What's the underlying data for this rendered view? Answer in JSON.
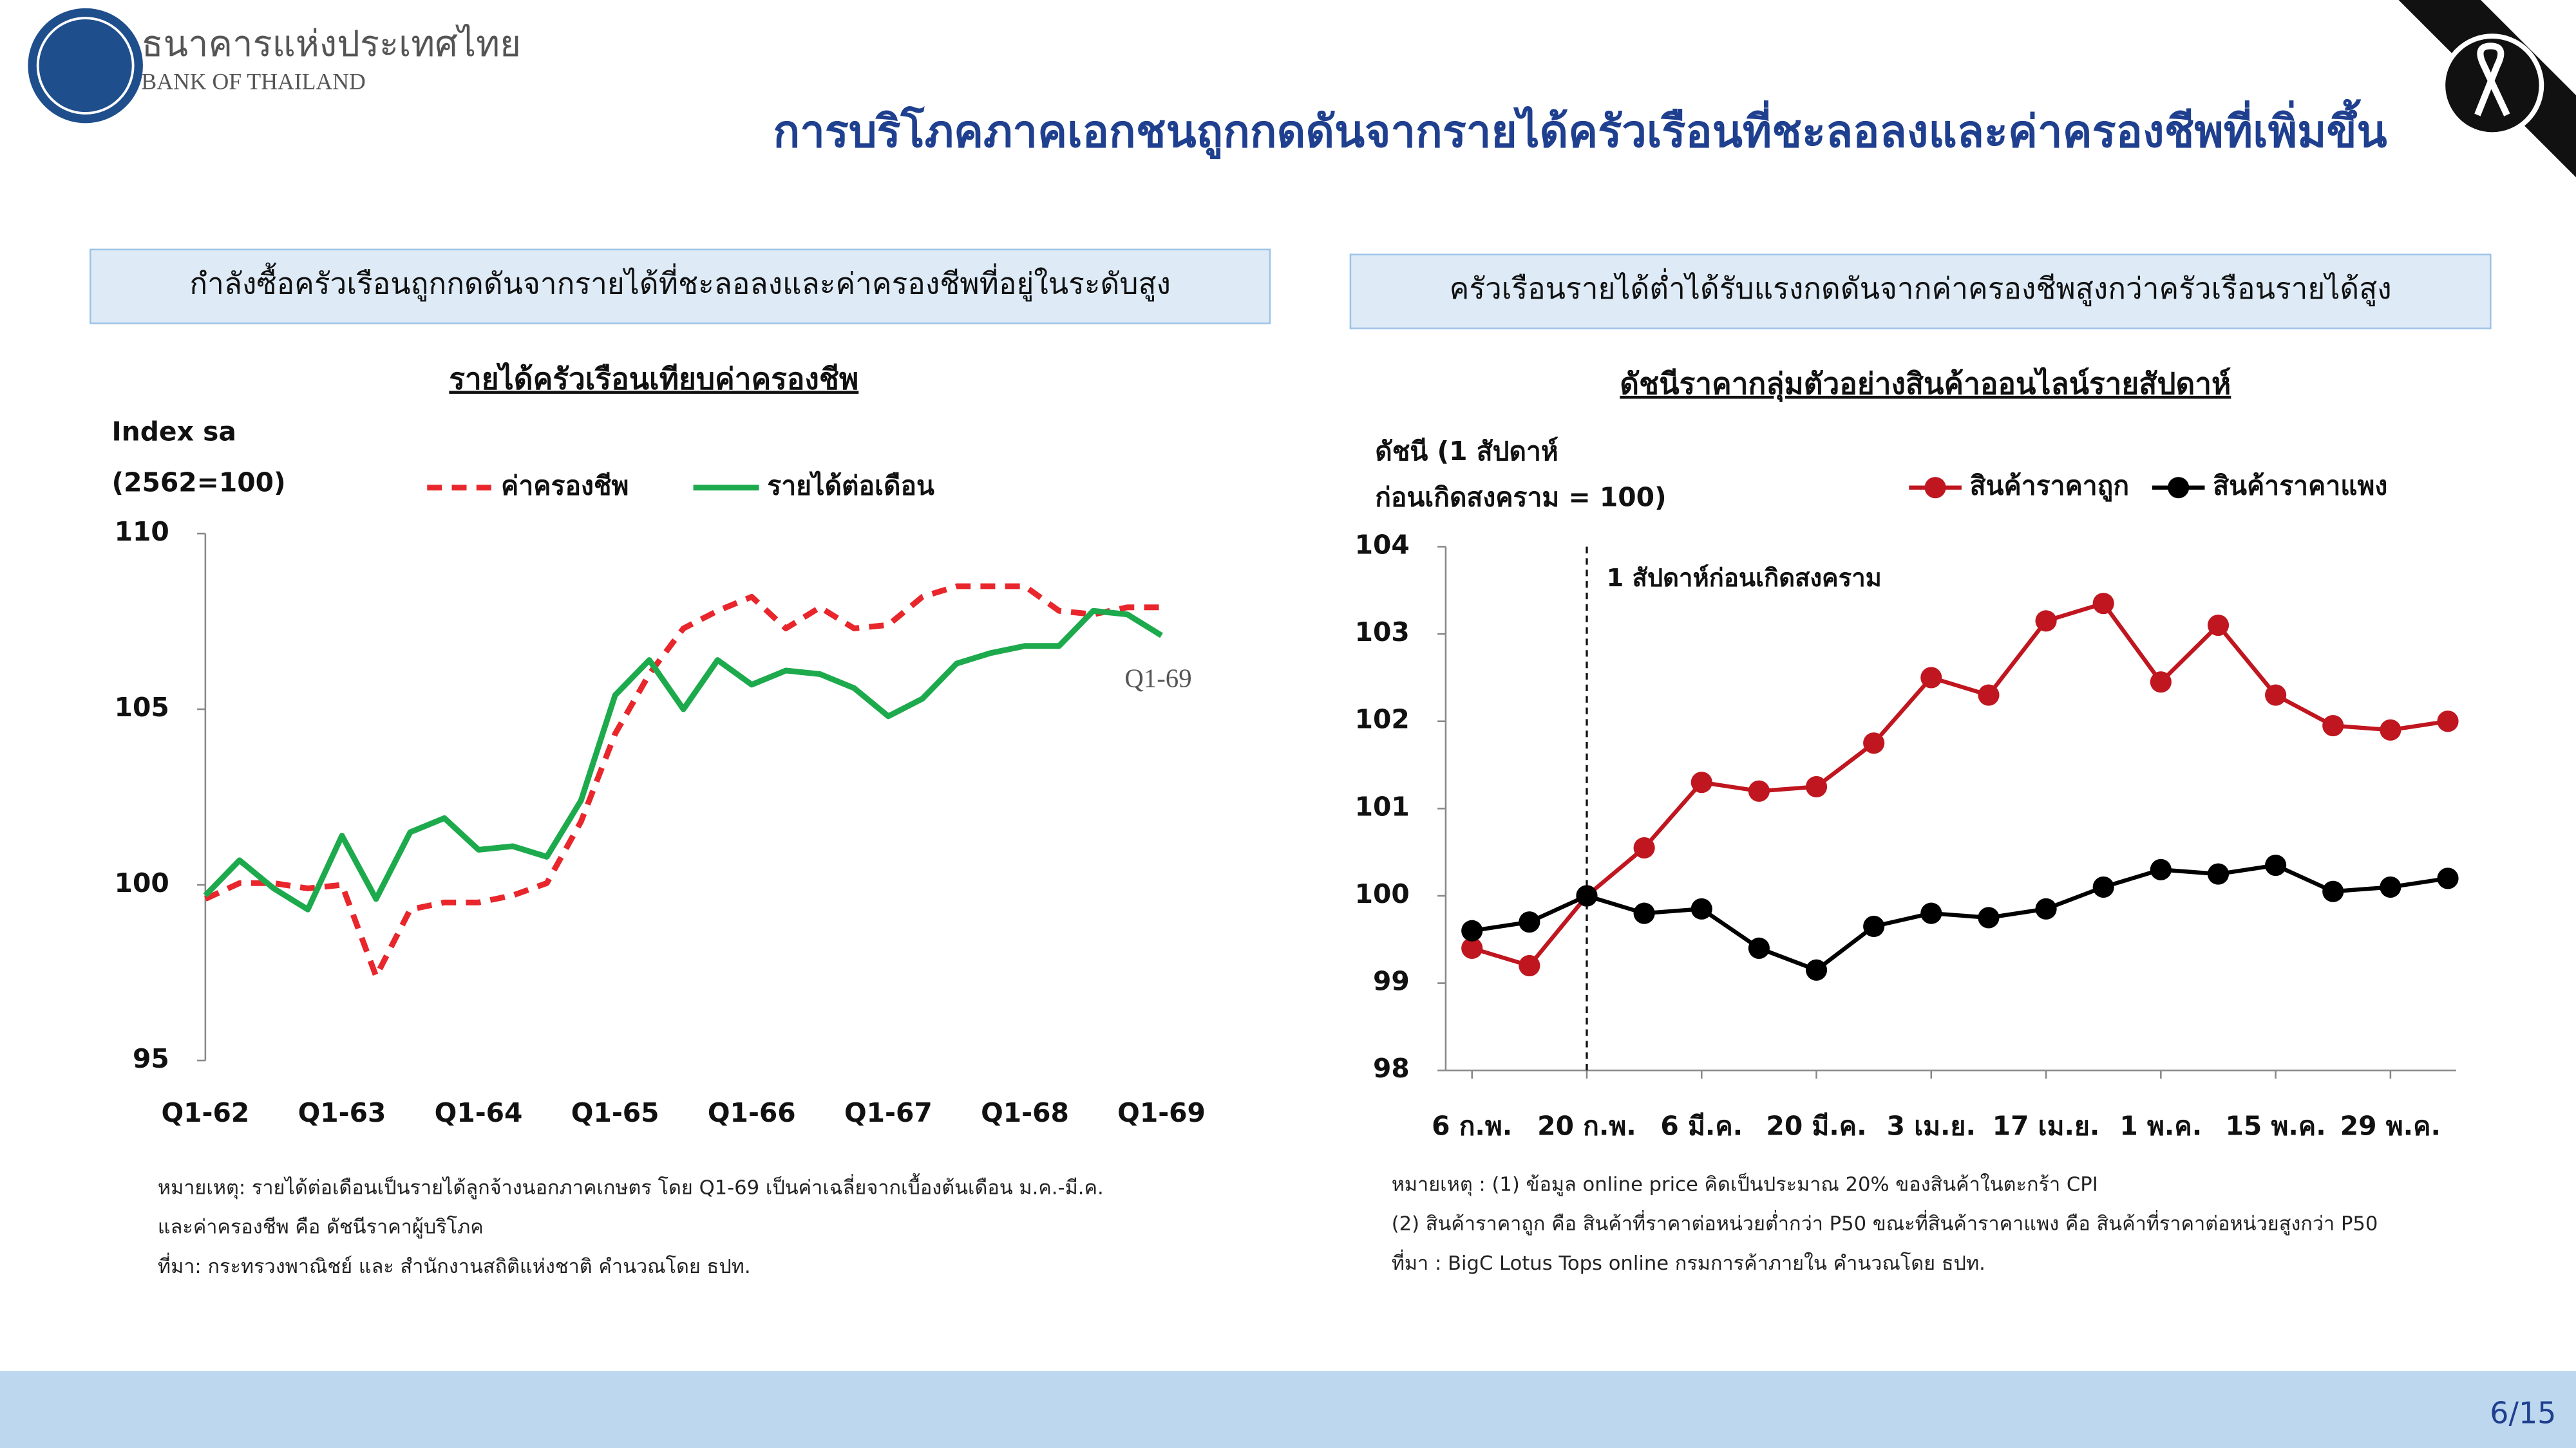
{
  "header": {
    "org_thai": "ธนาคารแห่งประเทศไทย",
    "org_en": "BANK OF THAILAND",
    "title": "การบริโภคภาคเอกชนถูกกดดันจากรายได้ครัวเรือนที่ชะลอลงและค่าครองชีพที่เพิ่มขึ้น"
  },
  "panels": [
    {
      "heading": "กำลังซื้อครัวเรือนถูกกดดันจากรายได้ที่ชะลอลงและค่าครองชีพที่อยู่ในระดับสูง",
      "notes": [
        "หมายเหตุ: รายได้ต่อเดือนเป็นรายได้ลูกจ้างนอกภาคเกษตร โดย Q1-69 เป็นค่าเฉลี่ยจากเบื้องต้นเดือน ม.ค.-มี.ค.",
        "และค่าครองชีพ คือ ดัชนีราคาผู้บริโภค",
        "ที่มา: กระทรวงพาณิชย์ และ สำนักงานสถิติแห่งชาติ คำนวณโดย ธปท."
      ]
    },
    {
      "heading": "ครัวเรือนรายได้ต่ำได้รับแรงกดดันจากค่าครองชีพสูงกว่าครัวเรือนรายได้สูง",
      "notes": [
        "หมายเหตุ : (1) ข้อมูล online price คิดเป็นประมาณ 20% ของสินค้าในตะกร้า CPI",
        "(2) สินค้าราคาถูก คือ สินค้าที่ราคาต่อหน่วยต่ำกว่า P50 ขณะที่สินค้าราคาแพง คือ สินค้าที่ราคาต่อหน่วยสูงกว่า P50",
        "ที่มา : BigC Lotus Tops online กรมการค้าภายใน คำนวณโดย ธปท."
      ]
    }
  ],
  "chart_data": [
    {
      "type": "line",
      "title": "รายได้ครัวเรือนเทียบค่าครองชีพ",
      "y_label": [
        "Index sa",
        "(2562=100)"
      ],
      "categories": [
        "Q1-62",
        null,
        null,
        null,
        "Q1-63",
        null,
        null,
        null,
        "Q1-64",
        null,
        null,
        null,
        "Q1-65",
        null,
        null,
        null,
        "Q1-66",
        null,
        null,
        null,
        "Q1-67",
        null,
        null,
        null,
        "Q1-68",
        null,
        null,
        null,
        "Q1-69"
      ],
      "series": [
        {
          "name": "ค่าครองชีพ",
          "color": "#e8262b",
          "dash": true,
          "markers": false,
          "values": [
            99.6,
            100.05,
            100.05,
            99.9,
            100.0,
            97.4,
            99.3,
            99.5,
            99.5,
            99.7,
            100.05,
            101.8,
            104.3,
            106.0,
            107.3,
            107.8,
            108.2,
            107.3,
            107.9,
            107.3,
            107.4,
            108.2,
            108.5,
            108.5,
            108.5,
            107.8,
            107.7,
            107.9,
            107.9
          ]
        },
        {
          "name": "รายได้ต่อเดือน",
          "color": "#1daa4d",
          "dash": false,
          "markers": false,
          "values": [
            99.7,
            100.7,
            99.9,
            99.3,
            101.4,
            99.6,
            101.5,
            101.9,
            101.0,
            101.1,
            100.8,
            102.4,
            105.4,
            106.4,
            105.0,
            106.4,
            105.7,
            106.1,
            106.0,
            105.6,
            104.8,
            105.3,
            106.3,
            106.6,
            106.8,
            106.8,
            107.8,
            107.7,
            107.1
          ]
        }
      ],
      "end_label": "Q1-69",
      "ylim": [
        95,
        110
      ],
      "yticks": [
        95,
        100,
        105,
        110
      ],
      "grid": false
    },
    {
      "type": "line",
      "title": "ดัชนีราคากลุ่มตัวอย่างสินค้าออนไลน์รายสัปดาห์",
      "y_label": [
        "ดัชนี (1 สัปดาห์",
        "ก่อนเกิดสงคราม = 100)"
      ],
      "categories": [
        "6 ก.พ.",
        null,
        "20 ก.พ.",
        null,
        "6 มี.ค.",
        null,
        "20 มี.ค.",
        null,
        "3 เม.ย.",
        null,
        "17 เม.ย.",
        null,
        "1 พ.ค.",
        null,
        "15 พ.ค.",
        null,
        "29 พ.ค.",
        null
      ],
      "series": [
        {
          "name": "สินค้าราคาถูก",
          "color": "#c0161f",
          "dash": false,
          "markers": true,
          "values": [
            99.4,
            99.2,
            100.0,
            100.55,
            101.3,
            101.2,
            101.25,
            101.75,
            102.5,
            102.3,
            103.15,
            103.35,
            102.45,
            103.1,
            102.3,
            101.95,
            101.9,
            102.0
          ]
        },
        {
          "name": "สินค้าราคาแพง",
          "color": "#000000",
          "dash": false,
          "markers": true,
          "values": [
            99.6,
            99.7,
            100.0,
            99.8,
            99.85,
            99.4,
            99.15,
            99.65,
            99.8,
            99.75,
            99.85,
            100.1,
            100.3,
            100.25,
            100.35,
            100.05,
            100.1,
            100.2
          ]
        }
      ],
      "event_marker": {
        "x": "20 ก.พ.",
        "label": "1 สัปดาห์ก่อนเกิดสงคราม"
      },
      "ylim": [
        98,
        104
      ],
      "yticks": [
        98,
        99,
        100,
        101,
        102,
        103,
        104
      ],
      "grid": false
    }
  ],
  "footer": {
    "page": "6/15"
  }
}
